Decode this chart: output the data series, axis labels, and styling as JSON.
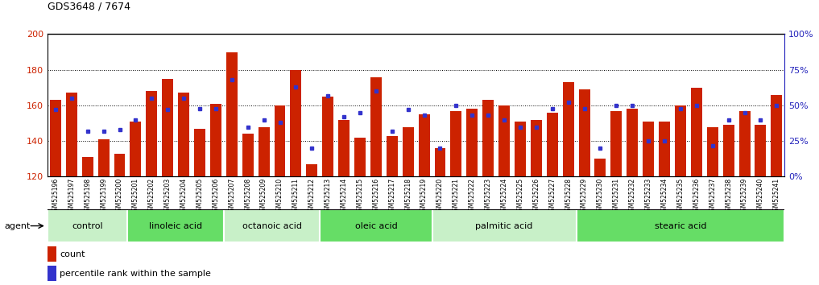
{
  "title": "GDS3648 / 7674",
  "ylim_left": [
    120,
    200
  ],
  "ylim_right": [
    0,
    100
  ],
  "yticks_left": [
    120,
    140,
    160,
    180,
    200
  ],
  "yticks_right": [
    0,
    25,
    50,
    75,
    100
  ],
  "bar_color": "#cc2200",
  "dot_color": "#3333cc",
  "bar_width": 0.7,
  "samples": [
    "GSM525196",
    "GSM525197",
    "GSM525198",
    "GSM525199",
    "GSM525200",
    "GSM525201",
    "GSM525202",
    "GSM525203",
    "GSM525204",
    "GSM525205",
    "GSM525206",
    "GSM525207",
    "GSM525208",
    "GSM525209",
    "GSM525210",
    "GSM525211",
    "GSM525212",
    "GSM525213",
    "GSM525214",
    "GSM525215",
    "GSM525216",
    "GSM525217",
    "GSM525218",
    "GSM525219",
    "GSM525220",
    "GSM525221",
    "GSM525222",
    "GSM525223",
    "GSM525224",
    "GSM525225",
    "GSM525226",
    "GSM525227",
    "GSM525228",
    "GSM525229",
    "GSM525230",
    "GSM525231",
    "GSM525232",
    "GSM525233",
    "GSM525234",
    "GSM525235",
    "GSM525236",
    "GSM525237",
    "GSM525238",
    "GSM525239",
    "GSM525240",
    "GSM525241"
  ],
  "bar_heights": [
    163,
    167,
    131,
    141,
    133,
    151,
    168,
    175,
    167,
    147,
    161,
    190,
    144,
    148,
    160,
    180,
    127,
    165,
    152,
    142,
    176,
    143,
    148,
    155,
    136,
    157,
    158,
    163,
    160,
    151,
    152,
    156,
    173,
    169,
    130,
    157,
    158,
    151,
    151,
    160,
    170,
    148,
    149,
    157,
    149,
    166
  ],
  "percentile_ranks": [
    47,
    55,
    32,
    32,
    33,
    40,
    55,
    47,
    55,
    48,
    48,
    68,
    35,
    40,
    38,
    63,
    20,
    57,
    42,
    45,
    60,
    32,
    47,
    43,
    20,
    50,
    43,
    43,
    40,
    35,
    35,
    48,
    52,
    48,
    20,
    50,
    50,
    25,
    25,
    48,
    50,
    22,
    40,
    45,
    40,
    50
  ],
  "groups": [
    {
      "label": "control",
      "start": 0,
      "end": 5,
      "color": "#c8f0c8"
    },
    {
      "label": "linoleic acid",
      "start": 5,
      "end": 11,
      "color": "#66dd66"
    },
    {
      "label": "octanoic acid",
      "start": 11,
      "end": 17,
      "color": "#c8f0c8"
    },
    {
      "label": "oleic acid",
      "start": 17,
      "end": 24,
      "color": "#66dd66"
    },
    {
      "label": "palmitic acid",
      "start": 24,
      "end": 33,
      "color": "#c8f0c8"
    },
    {
      "label": "stearic acid",
      "start": 33,
      "end": 46,
      "color": "#66dd66"
    }
  ],
  "legend_count_label": "count",
  "legend_pct_label": "percentile rank within the sample",
  "agent_label": "agent",
  "plot_bg_color": "#ffffff",
  "xtick_bg_color": "#d8d8d8",
  "tick_label_color": "#cc2200",
  "right_axis_color": "#2222bb",
  "left_axis_color": "#cc2200"
}
